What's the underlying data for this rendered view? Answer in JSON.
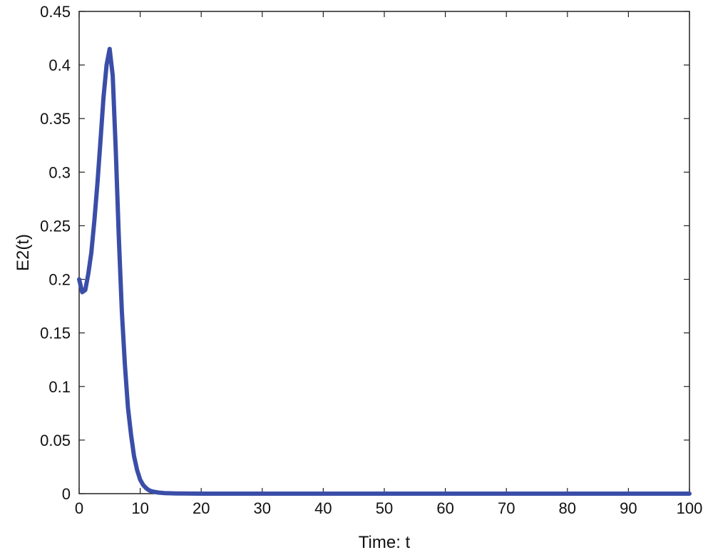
{
  "chart_data": {
    "type": "line",
    "title": "",
    "xlabel": "Time: t",
    "ylabel": "E2(t)",
    "xlim": [
      0,
      100
    ],
    "ylim": [
      0,
      0.45
    ],
    "x_ticks": [
      0,
      10,
      20,
      30,
      40,
      50,
      60,
      70,
      80,
      90,
      100
    ],
    "x_tick_labels": [
      "0",
      "10",
      "20",
      "30",
      "40",
      "50",
      "60",
      "70",
      "80",
      "90",
      "100"
    ],
    "y_ticks": [
      0,
      0.05,
      0.1,
      0.15,
      0.2,
      0.25,
      0.3,
      0.35,
      0.4,
      0.45
    ],
    "y_tick_labels": [
      "0",
      "0.05",
      "0.1",
      "0.15",
      "0.2",
      "0.25",
      "0.3",
      "0.35",
      "0.4",
      "0.45"
    ],
    "grid": false,
    "legend": "none",
    "series": [
      {
        "color": "#3a4ea8",
        "x": [
          0,
          0.5,
          1,
          1.5,
          2,
          2.5,
          3,
          3.5,
          4,
          4.5,
          5,
          5.5,
          6,
          6.5,
          7,
          7.5,
          8,
          8.5,
          9,
          9.5,
          10,
          10.5,
          11,
          11.5,
          12,
          13,
          14,
          16,
          20,
          30,
          40,
          50,
          60,
          70,
          80,
          90,
          100
        ],
        "y": [
          0.2,
          0.188,
          0.19,
          0.205,
          0.225,
          0.255,
          0.29,
          0.33,
          0.37,
          0.4,
          0.415,
          0.39,
          0.32,
          0.24,
          0.17,
          0.12,
          0.08,
          0.055,
          0.035,
          0.022,
          0.013,
          0.008,
          0.005,
          0.003,
          0.002,
          0.001,
          0.0005,
          0.0002,
          0,
          0,
          0,
          0,
          0,
          0,
          0,
          0,
          0
        ]
      }
    ]
  }
}
